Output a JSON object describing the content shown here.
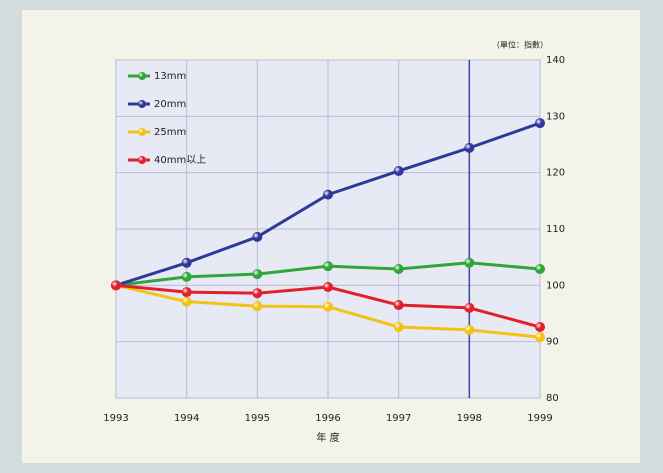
{
  "chart_data": {
    "type": "line",
    "unit_label": "（單位：指數）",
    "x_label": "年 度",
    "x": [
      1993,
      1994,
      1995,
      1996,
      1997,
      1998,
      1999
    ],
    "xlim": [
      1993,
      1999
    ],
    "xticks": [
      1993,
      1994,
      1995,
      1996,
      1997,
      1998,
      1999
    ],
    "ylim": [
      80,
      140
    ],
    "yticks": [
      80,
      90,
      100,
      110,
      120,
      130,
      140
    ],
    "y_axis_side": "right",
    "grid": true,
    "highlight_x": 1998,
    "legend": "top-left",
    "series": [
      {
        "name": "13mm",
        "color": "#2ea63a",
        "values": [
          100,
          101.5,
          102.0,
          103.4,
          102.9,
          104.0,
          102.9
        ]
      },
      {
        "name": "20mm",
        "color": "#2e3a9a",
        "values": [
          100,
          104.0,
          108.6,
          116.1,
          120.3,
          124.4,
          128.8
        ]
      },
      {
        "name": "25mm",
        "color": "#f2c316",
        "values": [
          100,
          97.1,
          96.3,
          96.2,
          92.6,
          92.1,
          90.8
        ]
      },
      {
        "name": "40mm以上",
        "color": "#e2202a",
        "values": [
          100,
          98.8,
          98.6,
          99.7,
          96.5,
          96.0,
          92.6
        ]
      }
    ]
  }
}
